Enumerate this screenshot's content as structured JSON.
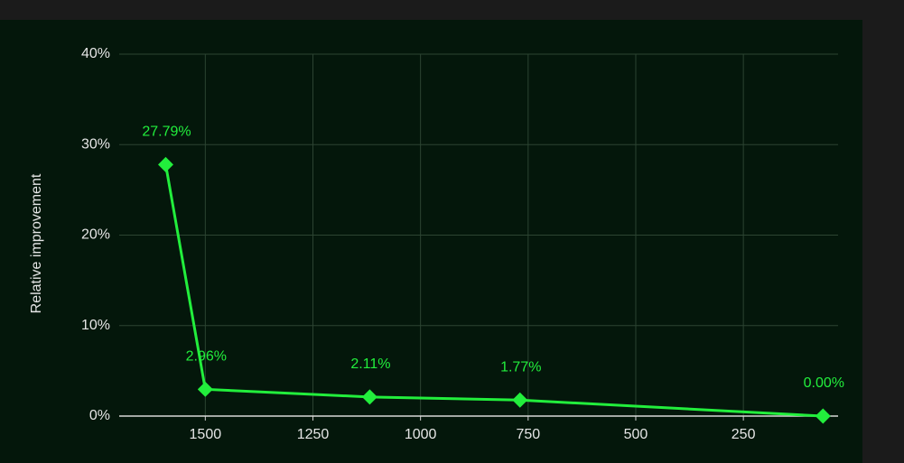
{
  "chart_data": {
    "type": "line",
    "y_label": "Relative improvement",
    "x": [
      1592,
      1500,
      1118,
      769,
      65
    ],
    "series": [
      {
        "color": "#22ee3c",
        "values": [
          27.79,
          2.96,
          2.11,
          1.77,
          0.0
        ],
        "value_labels": [
          "27.79%",
          "2.96%",
          "2.11%",
          "1.77%",
          "0.00%"
        ]
      }
    ],
    "xlim": [
      1700,
      30
    ],
    "xticks": [
      1500,
      1250,
      1000,
      750,
      500,
      250
    ],
    "ylim": [
      0,
      40
    ],
    "yticks": [
      {
        "value": 0,
        "label": "0%"
      },
      {
        "value": 10,
        "label": "10%"
      },
      {
        "value": 20,
        "label": "20%"
      },
      {
        "value": 30,
        "label": "30%"
      },
      {
        "value": 40,
        "label": "40%"
      }
    ],
    "grid": true
  }
}
